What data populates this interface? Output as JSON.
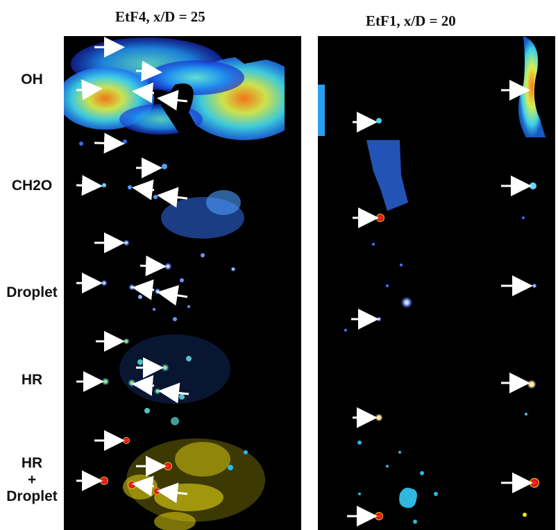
{
  "columns": [
    {
      "title": "EtF4, x/D = 25"
    },
    {
      "title": "EtF1, x/D = 20"
    }
  ],
  "rows": [
    {
      "label": "OH"
    },
    {
      "label": "CH2O"
    },
    {
      "label": "Droplet"
    },
    {
      "label": "HR"
    },
    {
      "label_lines": [
        "HR",
        "+",
        "Droplet"
      ]
    }
  ],
  "colors": {
    "background": "#000000",
    "oh_colormap": [
      "#1a2fd0",
      "#1f8ff0",
      "#3fd3e8",
      "#c8f060",
      "#ff8020"
    ],
    "ch2o_color": "#2f6ff0",
    "droplet_color": "#8fb0ff",
    "hr_color": "#4fc3c8",
    "overlay_hr": "#f5e414",
    "overlay_droplet_left": "#e01818",
    "overlay_droplet_right": "#2fb8e0",
    "arrow": "#ffffff"
  }
}
